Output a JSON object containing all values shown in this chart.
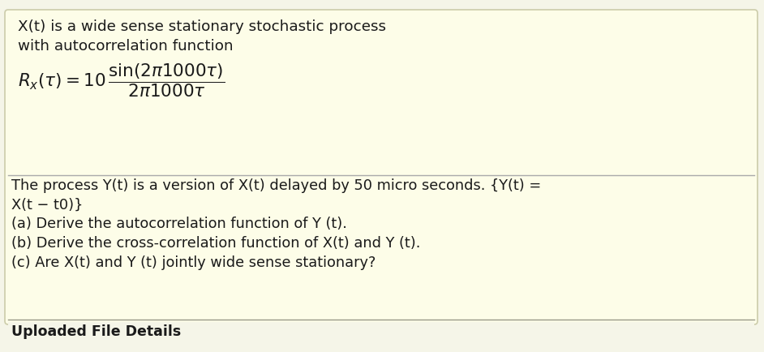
{
  "outer_bg": "#f5f5e8",
  "box_bg": "#fdfde8",
  "box_border_color": "#ccccaa",
  "bottom_bg": "#ffffff",
  "text_color": "#1a1a1a",
  "line1": "X(t) is a wide sense stationary stochastic process",
  "line2": "with autocorrelation function",
  "formula_str": "$R_x(\\tau) = 10\\,\\dfrac{\\mathrm{sin}(2\\pi1000\\tau)}{2\\pi1000\\tau}$",
  "para1": "The process Y(t) is a version of X(t) delayed by 50 micro seconds. {Y(t) =",
  "para2": "X(t − t0)}",
  "item_a": "(a) Derive the autocorrelation function of Y (t).",
  "item_b": "(b) Derive the cross-correlation function of X(t) and Y (t).",
  "item_c": "(c) Are X(t) and Y (t) jointly wide sense stationary?",
  "footer": "Uploaded File Details",
  "figsize": [
    9.42,
    4.34
  ],
  "dpi": 100,
  "outer_border_color": "#555555",
  "outer_border_lw": 1.5,
  "fs_text": 13.2,
  "fs_formula": 15.5,
  "fs_body": 12.8,
  "fs_footer": 12.5
}
